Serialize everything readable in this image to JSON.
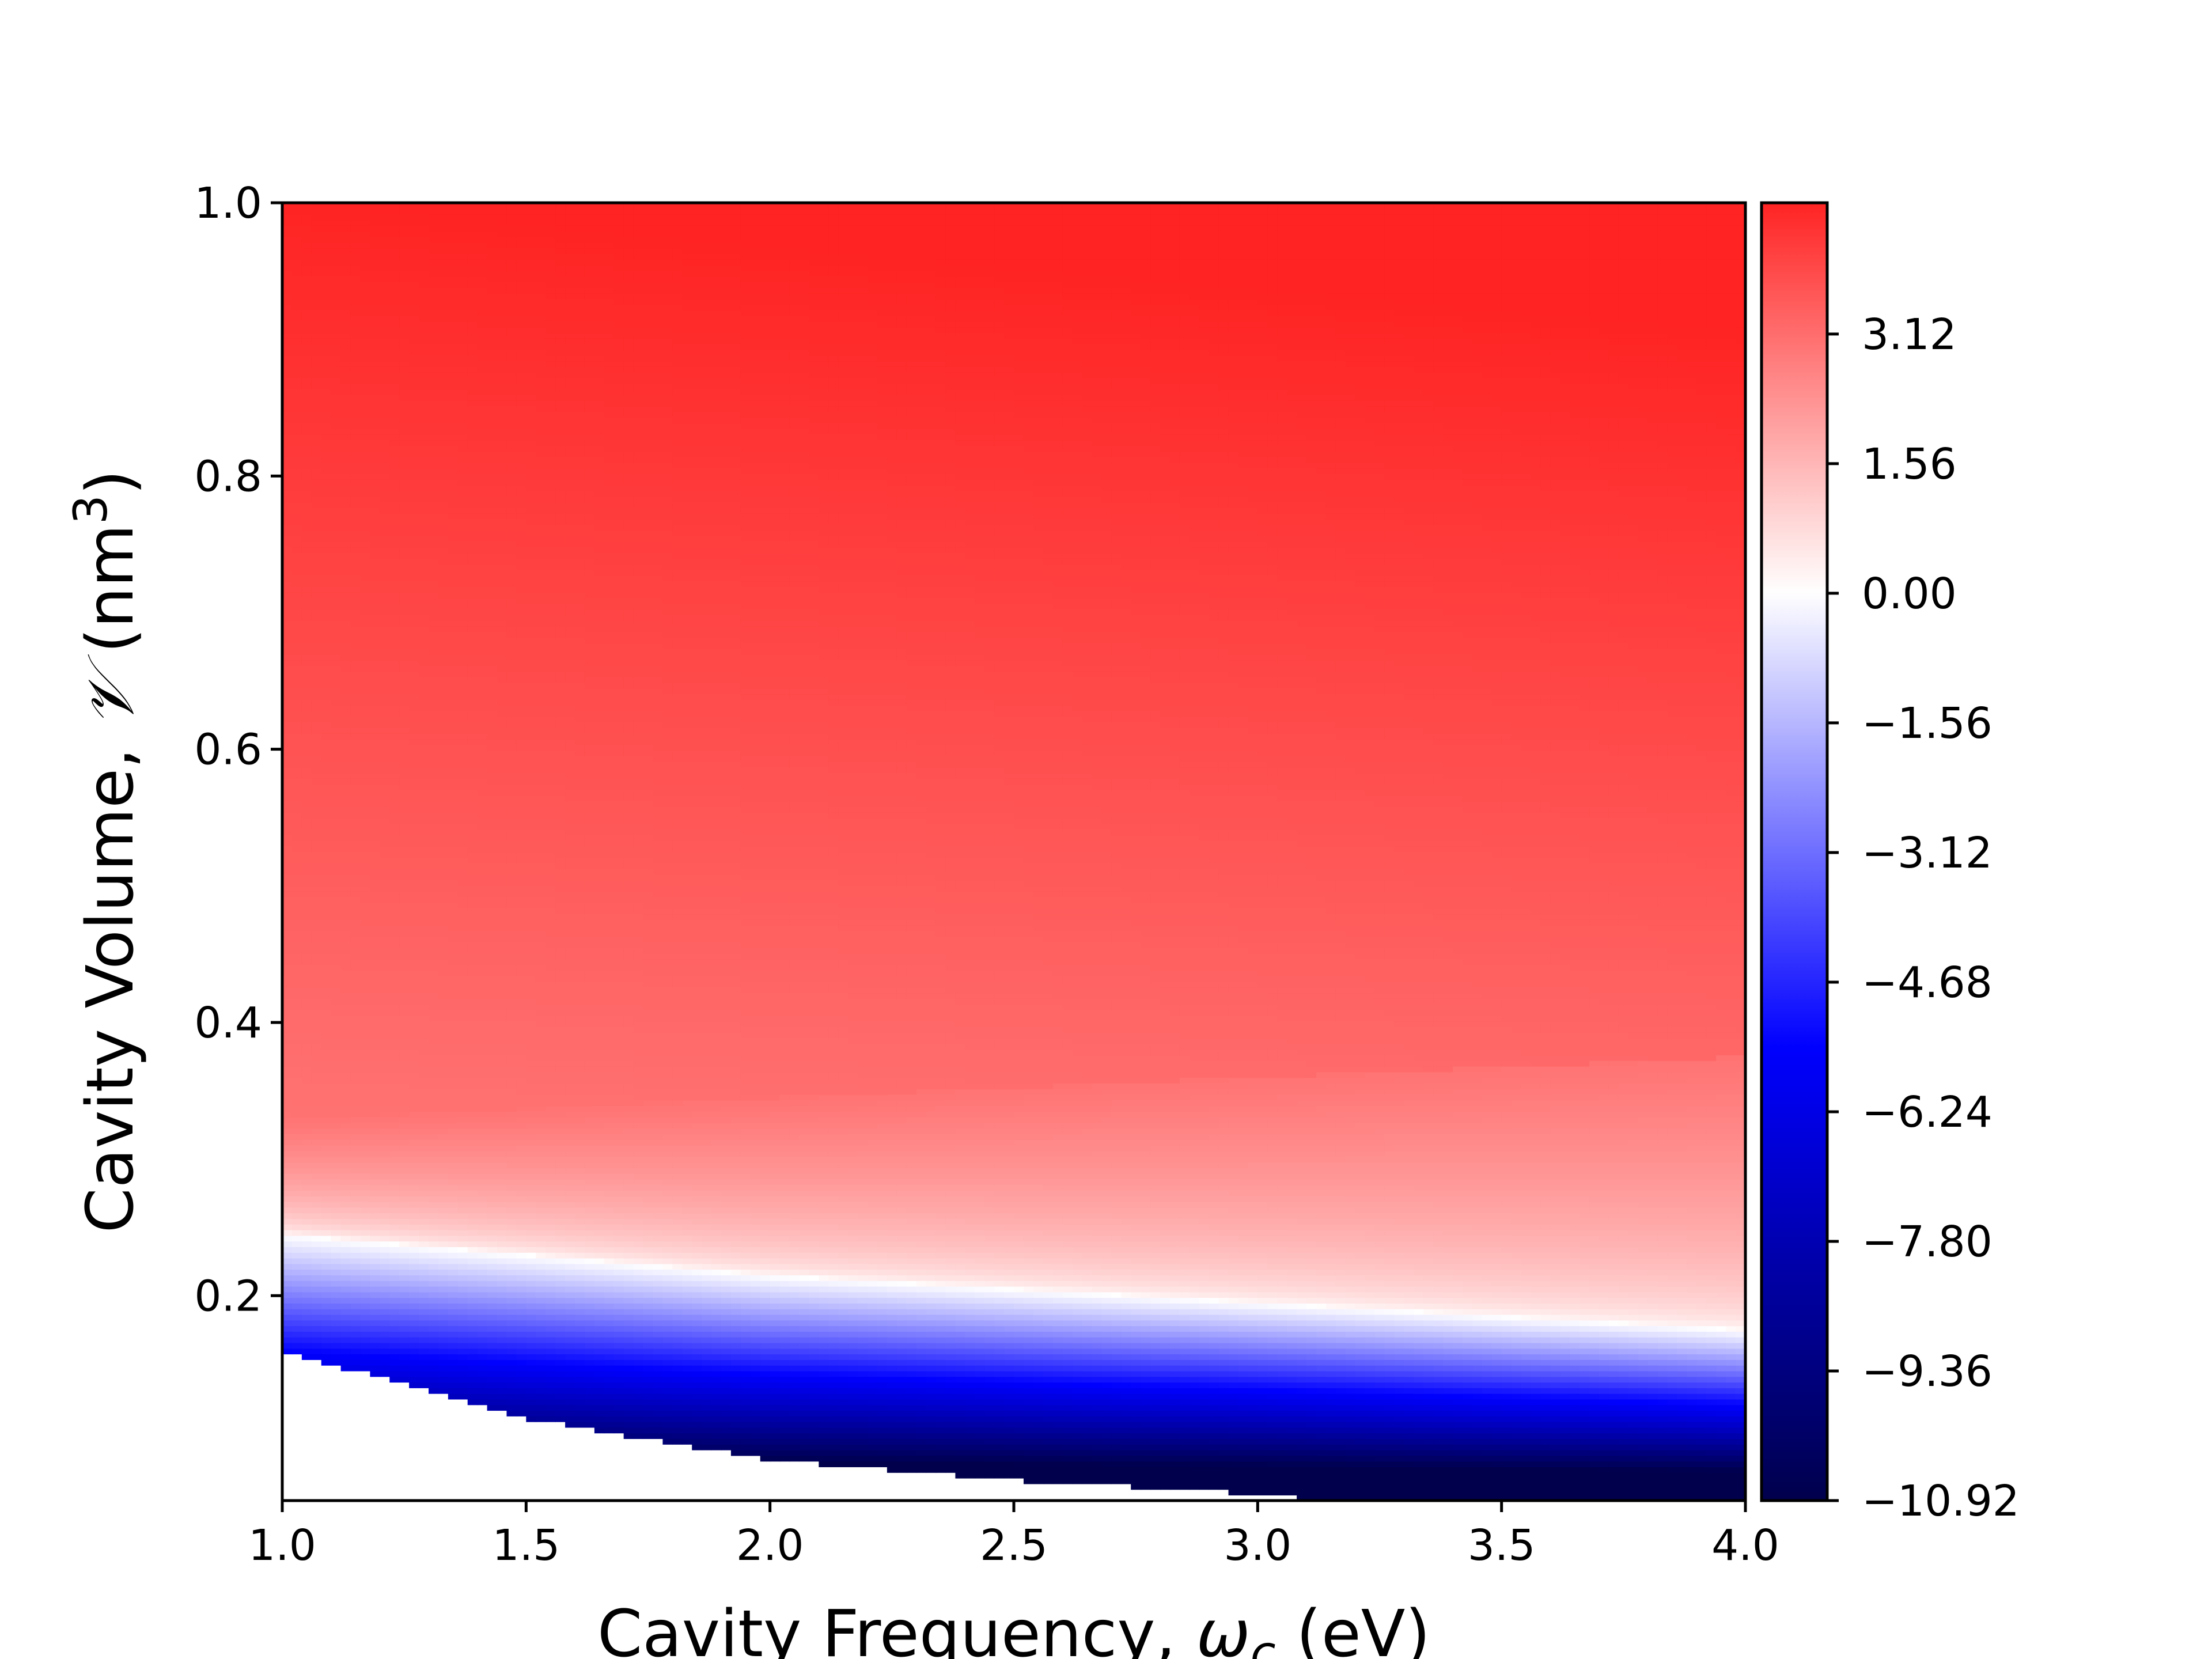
{
  "chart_data": {
    "type": "heatmap",
    "title": "",
    "xlabel": {
      "prefix": "Cavity Frequency, ",
      "symbol": "ω",
      "subscript": "c",
      "suffix": " (eV)"
    },
    "ylabel": {
      "prefix": "Cavity Volume, ",
      "symbol": "𝒱",
      "unit_open": " (nm",
      "superscript": "3",
      "unit_close": ")"
    },
    "xlim": [
      1.0,
      4.0
    ],
    "ylim": [
      0.05,
      1.0
    ],
    "x_ticks": [
      "1.0",
      "1.5",
      "2.0",
      "2.5",
      "3.0",
      "3.5",
      "4.0"
    ],
    "x_tick_values": [
      1.0,
      1.5,
      2.0,
      2.5,
      3.0,
      3.5,
      4.0
    ],
    "y_ticks": [
      "0.2",
      "0.4",
      "0.6",
      "0.8",
      "1.0"
    ],
    "y_tick_values": [
      0.2,
      0.4,
      0.6,
      0.8,
      1.0
    ],
    "colormap": "seismic",
    "colorbar": {
      "range": [
        -10.92,
        4.7
      ],
      "ticks": [
        "3.12",
        "1.56",
        "0.00",
        "−1.56",
        "−3.12",
        "−4.68",
        "−6.24",
        "−7.80",
        "−9.36",
        "−10.92"
      ],
      "tick_values": [
        3.12,
        1.56,
        0.0,
        -1.56,
        -3.12,
        -4.68,
        -6.24,
        -7.8,
        -9.36,
        -10.92
      ]
    },
    "zero_contour": [
      {
        "x": 1.0,
        "y": 0.245
      },
      {
        "x": 2.0,
        "y": 0.215
      },
      {
        "x": 3.0,
        "y": 0.195
      },
      {
        "x": 4.0,
        "y": 0.175
      }
    ],
    "masked_region_boundary": [
      {
        "x": 1.0,
        "y": 0.16
      },
      {
        "x": 1.5,
        "y": 0.11
      },
      {
        "x": 2.0,
        "y": 0.08
      },
      {
        "x": 2.5,
        "y": 0.065
      },
      {
        "x": 3.0,
        "y": 0.055
      },
      {
        "x": 3.15,
        "y": 0.05
      }
    ],
    "grid": false,
    "colors": {
      "negative_max": "#00004c",
      "negative_mid": "#0000ff",
      "zero": "#ffffff",
      "positive_mid": "#ff0000",
      "positive_max": "#800000"
    }
  }
}
